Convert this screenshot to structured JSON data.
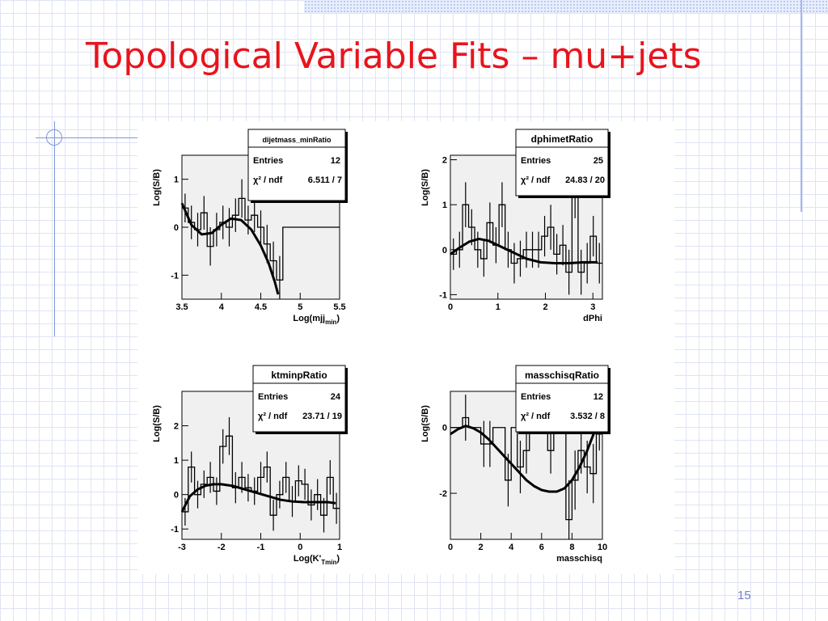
{
  "slide": {
    "title": "Topological Variable Fits – mu+jets",
    "page_number": "15"
  },
  "chart_data": [
    {
      "type": "histogram",
      "name": "dijetmass_minRatio",
      "stats": {
        "entries_label": "Entries",
        "entries": "12",
        "chi2_label": "χ² / ndf",
        "chi2": "6.511 / 7"
      },
      "xlabel": "Log(mjj",
      "xlabel_sub": "min",
      "xlabel_close": ")",
      "ylabel": "Log(S/B)",
      "xlim": [
        3.5,
        5.5
      ],
      "ylim": [
        -1.5,
        1.5
      ],
      "xticks": [
        3.5,
        4,
        4.5,
        5,
        5.5
      ],
      "xtick_labels": [
        "3.5",
        "4",
        "4.5",
        "5",
        "5.5"
      ],
      "yticks": [
        -1,
        0,
        1
      ],
      "ytick_labels": [
        "-1",
        "0",
        "1"
      ],
      "bins": {
        "x0": 3.5,
        "width": 0.08
      },
      "values": [
        0.4,
        0.1,
        -0.05,
        0.3,
        -0.4,
        -0.05,
        0.1,
        0.0,
        0.25,
        0.6,
        0.15,
        0.25,
        0.0,
        -0.35,
        -0.7,
        -1.1,
        0.0,
        0.0,
        0.0,
        0.0,
        0.0,
        0.0,
        0.0,
        0.0,
        0.0
      ],
      "errors": [
        0.3,
        0.35,
        0.35,
        0.35,
        0.4,
        0.35,
        0.35,
        0.4,
        0.35,
        0.4,
        0.3,
        0.35,
        0.35,
        0.4,
        0.4,
        0.5,
        0,
        0,
        0,
        0,
        0,
        0,
        0,
        0,
        0
      ],
      "fit": {
        "x": [
          3.5,
          3.62,
          3.75,
          3.88,
          4.0,
          4.12,
          4.25,
          4.38,
          4.5,
          4.6,
          4.68,
          4.72
        ],
        "y": [
          0.5,
          0.05,
          -0.15,
          -0.12,
          0.05,
          0.18,
          0.15,
          -0.05,
          -0.38,
          -0.75,
          -1.15,
          -1.4
        ]
      }
    },
    {
      "type": "histogram",
      "name": "dphimetRatio",
      "stats": {
        "entries_label": "Entries",
        "entries": "25",
        "chi2_label": "χ² / ndf",
        "chi2": "24.83 / 20"
      },
      "xlabel": "dPhi",
      "ylabel": "Log(S/B)",
      "xlim": [
        0,
        3.2
      ],
      "ylim": [
        -1.1,
        2.1
      ],
      "xticks": [
        0,
        1,
        2,
        3
      ],
      "xtick_labels": [
        "0",
        "1",
        "2",
        "3"
      ],
      "yticks": [
        -1,
        0,
        1,
        2
      ],
      "ytick_labels": [
        "-1",
        "0",
        "1",
        "2"
      ],
      "bins": {
        "x0": 0,
        "width": 0.128
      },
      "values": [
        -0.1,
        0.0,
        1.0,
        0.5,
        0.0,
        -0.2,
        0.6,
        0.1,
        1.0,
        0.0,
        -0.3,
        -0.2,
        0.0,
        0.0,
        0.0,
        0.3,
        0.5,
        -0.1,
        0.1,
        -0.5,
        1.3,
        -0.5,
        -0.3,
        0.3,
        -0.3
      ],
      "errors": [
        0.35,
        0.4,
        0.5,
        0.4,
        0.4,
        0.4,
        0.45,
        0.4,
        0.5,
        0.4,
        0.45,
        0.4,
        0.4,
        0.4,
        0.4,
        0.45,
        0.5,
        0.45,
        0.45,
        0.5,
        0.6,
        0.5,
        0.45,
        0.45,
        0.45
      ],
      "fit": {
        "x": [
          0,
          0.2,
          0.4,
          0.6,
          0.8,
          1.0,
          1.3,
          1.6,
          1.9,
          2.2,
          2.5,
          2.8,
          3.1
        ],
        "y": [
          -0.1,
          0.05,
          0.18,
          0.24,
          0.2,
          0.1,
          -0.05,
          -0.2,
          -0.28,
          -0.3,
          -0.3,
          -0.28,
          -0.28
        ]
      }
    },
    {
      "type": "histogram",
      "name": "ktminpRatio",
      "stats": {
        "entries_label": "Entries",
        "entries": "24",
        "chi2_label": "χ² / ndf",
        "chi2": "23.71 / 19"
      },
      "xlabel": "Log(K'",
      "xlabel_sub": "Tmin",
      "xlabel_close": ")",
      "ylabel": "Log(S/B)",
      "xlim": [
        -3,
        1
      ],
      "ylim": [
        -1.3,
        3.0
      ],
      "xticks": [
        -3,
        -2,
        -1,
        0,
        1
      ],
      "xtick_labels": [
        "-3",
        "-2",
        "-1",
        "0",
        "1"
      ],
      "yticks": [
        -1,
        0,
        1,
        2
      ],
      "ytick_labels": [
        "-1",
        "0",
        "1",
        "2"
      ],
      "bins": {
        "x0": -3,
        "width": 0.16
      },
      "values": [
        -0.5,
        0.8,
        0.0,
        0.3,
        0.5,
        0.1,
        1.4,
        1.7,
        0.2,
        0.5,
        0.2,
        0.1,
        0.5,
        0.8,
        -0.6,
        0.0,
        0.5,
        -0.2,
        0.4,
        0.3,
        -0.3,
        0.0,
        -0.6,
        0.5,
        -0.4
      ],
      "errors": [
        0.4,
        0.45,
        0.4,
        0.4,
        0.45,
        0.4,
        0.5,
        0.55,
        0.45,
        0.45,
        0.4,
        0.4,
        0.45,
        0.45,
        0.45,
        0.4,
        0.45,
        0.45,
        0.45,
        0.45,
        0.45,
        0.45,
        0.5,
        0.5,
        0.45
      ],
      "fit": {
        "x": [
          -3,
          -2.8,
          -2.6,
          -2.4,
          -2.2,
          -2.0,
          -1.7,
          -1.4,
          -1.1,
          -0.8,
          -0.5,
          -0.2,
          0.1,
          0.4,
          0.7,
          0.9
        ],
        "y": [
          -0.5,
          -0.05,
          0.15,
          0.26,
          0.3,
          0.3,
          0.25,
          0.15,
          0.05,
          -0.05,
          -0.15,
          -0.2,
          -0.22,
          -0.22,
          -0.22,
          -0.25
        ]
      }
    },
    {
      "type": "histogram",
      "name": "masschisqRatio",
      "stats": {
        "entries_label": "Entries",
        "entries": "12",
        "chi2_label": "χ² / ndf",
        "chi2": "3.532 / 8"
      },
      "xlabel": "masschisq",
      "ylabel": "Log(S/B)",
      "xlim": [
        0,
        10
      ],
      "ylim": [
        -3.4,
        1.1
      ],
      "xticks": [
        0,
        2,
        4,
        6,
        8,
        10
      ],
      "xtick_labels": [
        "0",
        "2",
        "4",
        "6",
        "8",
        "10"
      ],
      "yticks": [
        -2,
        0
      ],
      "ytick_labels": [
        "-2",
        "0"
      ],
      "bins": {
        "x0": 0,
        "width": 0.4
      },
      "values": [
        0.0,
        0.0,
        0.3,
        0.0,
        0.0,
        -0.5,
        -0.5,
        0.0,
        0.0,
        -1.6,
        0.0,
        -1.2,
        -0.7,
        0.0,
        0.0,
        0.0,
        -0.7,
        0.0,
        0.0,
        -2.8,
        -1.6,
        -0.7,
        -1.2,
        -1.4,
        -0.2
      ],
      "errors": [
        0,
        0,
        0.7,
        0,
        0,
        0.7,
        0.7,
        0,
        0,
        0.8,
        0,
        0.8,
        0.7,
        0,
        0,
        0,
        0.7,
        0,
        0,
        1.2,
        0.9,
        0.7,
        0.8,
        0.9,
        0.5
      ],
      "fit": {
        "x": [
          0,
          0.5,
          1,
          1.5,
          2,
          2.5,
          3,
          3.5,
          4,
          4.5,
          5,
          5.5,
          6,
          6.5,
          7,
          7.5,
          8,
          8.5,
          9,
          9.5,
          10
        ],
        "y": [
          -0.2,
          -0.05,
          0.05,
          -0.02,
          -0.15,
          -0.35,
          -0.6,
          -0.85,
          -1.1,
          -1.35,
          -1.6,
          -1.78,
          -1.9,
          -1.95,
          -1.95,
          -1.85,
          -1.6,
          -1.2,
          -0.7,
          -0.1,
          0.3
        ]
      }
    }
  ]
}
